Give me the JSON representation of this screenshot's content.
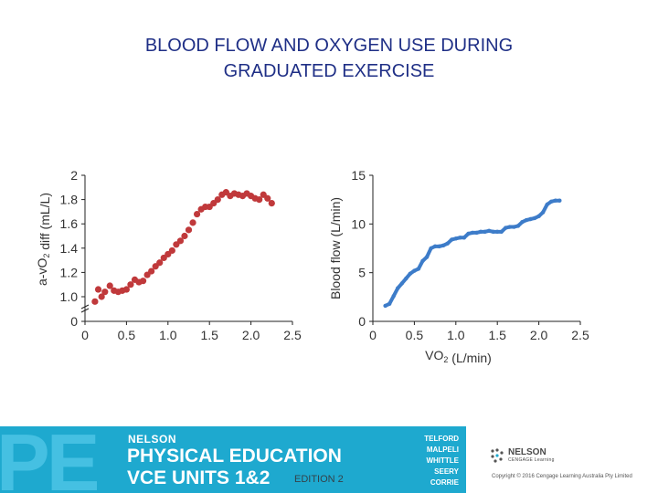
{
  "slide": {
    "title_line1": "BLOOD FLOW AND OXYGEN USE DURING",
    "title_line2": "GRADUATED EXERCISE"
  },
  "chart_data": [
    {
      "type": "scatter",
      "title": "",
      "xlabel": "",
      "ylabel": "a-vO2 diff (mL/L)",
      "xlim": [
        0,
        2.5
      ],
      "ylim": [
        0,
        2
      ],
      "xticks": [
        "0",
        "0.5",
        "1.0",
        "1.5",
        "2.0",
        "2.5"
      ],
      "yticks": [
        "0",
        "1.0",
        "1.2",
        "1.4",
        "1.6",
        "1.8",
        "2"
      ],
      "axis_break": "between 0 and 1.0",
      "color": "#c0393b",
      "x": [
        0.12,
        0.16,
        0.2,
        0.24,
        0.3,
        0.35,
        0.4,
        0.45,
        0.5,
        0.55,
        0.6,
        0.65,
        0.7,
        0.75,
        0.8,
        0.85,
        0.9,
        0.95,
        1.0,
        1.05,
        1.1,
        1.15,
        1.2,
        1.25,
        1.3,
        1.35,
        1.4,
        1.45,
        1.5,
        1.55,
        1.6,
        1.65,
        1.7,
        1.75,
        1.8,
        1.85,
        1.9,
        1.95,
        2.0,
        2.05,
        2.1,
        2.15,
        2.2,
        2.25
      ],
      "y": [
        0.96,
        1.06,
        1.0,
        1.04,
        1.09,
        1.05,
        1.04,
        1.05,
        1.06,
        1.1,
        1.14,
        1.12,
        1.13,
        1.18,
        1.21,
        1.25,
        1.28,
        1.32,
        1.35,
        1.38,
        1.43,
        1.46,
        1.5,
        1.55,
        1.61,
        1.68,
        1.72,
        1.74,
        1.74,
        1.77,
        1.8,
        1.84,
        1.86,
        1.83,
        1.85,
        1.84,
        1.83,
        1.85,
        1.83,
        1.81,
        1.8,
        1.84,
        1.81,
        1.77
      ]
    },
    {
      "type": "line",
      "title": "",
      "xlabel": "VO2 (L/min)",
      "ylabel": "Blood flow (L/min)",
      "xlim": [
        0,
        2.5
      ],
      "ylim": [
        0,
        15
      ],
      "xticks": [
        "0",
        "0.5",
        "1.0",
        "1.5",
        "2.0",
        "2.5"
      ],
      "yticks": [
        "0",
        "5",
        "10",
        "15"
      ],
      "color": "#3d7cc9",
      "x": [
        0.15,
        0.2,
        0.25,
        0.3,
        0.35,
        0.4,
        0.45,
        0.5,
        0.55,
        0.6,
        0.65,
        0.7,
        0.75,
        0.8,
        0.85,
        0.9,
        0.95,
        1.0,
        1.05,
        1.1,
        1.15,
        1.2,
        1.25,
        1.3,
        1.35,
        1.4,
        1.45,
        1.5,
        1.55,
        1.6,
        1.65,
        1.7,
        1.75,
        1.8,
        1.85,
        1.9,
        1.95,
        2.0,
        2.05,
        2.1,
        2.15,
        2.2,
        2.25
      ],
      "y": [
        1.6,
        1.8,
        2.6,
        3.4,
        3.9,
        4.4,
        4.9,
        5.2,
        5.4,
        6.2,
        6.6,
        7.5,
        7.7,
        7.7,
        7.8,
        8.0,
        8.4,
        8.5,
        8.6,
        8.6,
        9.0,
        9.1,
        9.1,
        9.2,
        9.2,
        9.3,
        9.2,
        9.2,
        9.2,
        9.6,
        9.7,
        9.7,
        9.8,
        10.2,
        10.4,
        10.5,
        10.6,
        10.8,
        11.2,
        12.0,
        12.3,
        12.4,
        12.4
      ]
    }
  ],
  "footer": {
    "pe_logo": "PE",
    "brand": "NELSON",
    "product_line1": "PHYSICAL EDUCATION",
    "product_line2": "VCE UNITS 1&2",
    "edition": "EDITION 2",
    "authors": [
      "TELFORD",
      "MALPELI",
      "WHITTLE",
      "SEERY",
      "CORRIE"
    ],
    "publisher_name": "NELSON",
    "publisher_sub": "CENGAGE Learning",
    "copyright": "Copyright © 2016 Cengage Learning Australia Pty Limited"
  }
}
